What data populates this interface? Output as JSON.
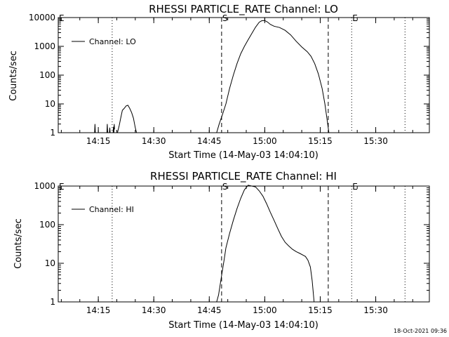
{
  "footer": {
    "timestamp": "18-Oct-2021 09:36"
  },
  "chart_data": [
    {
      "type": "line",
      "title": "RHESSI PARTICLE_RATE Channel: LO",
      "xlabel": "Start Time (14-May-03 14:04:10)",
      "ylabel": "Counts/sec",
      "yscale": "log",
      "ylim": [
        1,
        10000
      ],
      "xlim": [
        "14:04:10",
        "15:44:30"
      ],
      "xticks": [
        "14:15",
        "14:30",
        "14:45",
        "15:00",
        "15:15",
        "15:30"
      ],
      "yticks": [
        "1",
        "10",
        "100",
        "1000",
        "10000"
      ],
      "legend": {
        "label": "Channel: LO",
        "position": "top-left"
      },
      "markers": [
        {
          "label": "E",
          "time": "14:04:10",
          "style": "none"
        },
        {
          "label": "",
          "time": "14:18:45",
          "style": "dotted"
        },
        {
          "label": "S",
          "time": "14:48:20",
          "style": "dashed"
        },
        {
          "label": "",
          "time": "15:17:10",
          "style": "dashed"
        },
        {
          "label": "E",
          "time": "15:23:30",
          "style": "dotted"
        },
        {
          "label": "",
          "time": "15:37:55",
          "style": "dotted"
        }
      ],
      "series": [
        {
          "name": "Channel: LO",
          "segments": [
            [
              [
                "14:14:00",
                1
              ],
              [
                "14:14:06",
                2
              ],
              [
                "14:14:12",
                1
              ]
            ],
            [
              [
                "14:17:20",
                1
              ],
              [
                "14:17:26",
                2
              ],
              [
                "14:17:32",
                1
              ]
            ],
            [
              [
                "14:18:00",
                1
              ],
              [
                "14:18:06",
                1.5
              ],
              [
                "14:18:12",
                1
              ]
            ],
            [
              [
                "14:19:00",
                1
              ],
              [
                "14:19:06",
                1.6
              ],
              [
                "14:19:12",
                1
              ],
              [
                "14:19:18",
                2
              ],
              [
                "14:19:24",
                1.3
              ]
            ],
            [
              [
                "14:20:10",
                1
              ],
              [
                "14:20:40",
                1.8
              ],
              [
                "14:21:00",
                3
              ],
              [
                "14:21:30",
                6
              ],
              [
                "14:22:00",
                7
              ],
              [
                "14:22:30",
                8.5
              ],
              [
                "14:23:00",
                9
              ],
              [
                "14:23:30",
                7
              ],
              [
                "14:24:00",
                5
              ],
              [
                "14:24:30",
                3.2
              ],
              [
                "14:25:00",
                1.5
              ],
              [
                "14:25:20",
                1
              ]
            ],
            [
              [
                "14:47:00",
                1
              ],
              [
                "14:47:40",
                2
              ],
              [
                "14:48:30",
                4
              ],
              [
                "14:49:30",
                10
              ],
              [
                "14:50:30",
                35
              ],
              [
                "14:51:30",
                100
              ],
              [
                "14:52:30",
                250
              ],
              [
                "14:53:30",
                550
              ],
              [
                "14:54:30",
                1000
              ],
              [
                "14:55:30",
                1700
              ],
              [
                "14:56:30",
                2800
              ],
              [
                "14:57:30",
                4600
              ],
              [
                "14:58:30",
                6900
              ],
              [
                "14:59:15",
                7800
              ],
              [
                "15:00:00",
                7900
              ],
              [
                "15:00:45",
                7000
              ],
              [
                "15:01:30",
                5800
              ],
              [
                "15:02:30",
                5000
              ],
              [
                "15:04:00",
                4500
              ],
              [
                "15:05:30",
                3600
              ],
              [
                "15:07:00",
                2500
              ],
              [
                "15:08:30",
                1500
              ],
              [
                "15:10:00",
                950
              ],
              [
                "15:11:30",
                650
              ],
              [
                "15:12:30",
                450
              ],
              [
                "15:13:30",
                250
              ],
              [
                "15:14:30",
                110
              ],
              [
                "15:15:30",
                35
              ],
              [
                "15:16:15",
                10
              ],
              [
                "15:16:50",
                3
              ],
              [
                "15:17:20",
                1
              ]
            ]
          ]
        }
      ]
    },
    {
      "type": "line",
      "title": "RHESSI PARTICLE_RATE Channel: HI",
      "xlabel": "Start Time (14-May-03 14:04:10)",
      "ylabel": "Counts/sec",
      "yscale": "log",
      "ylim": [
        1,
        1000
      ],
      "xlim": [
        "14:04:10",
        "15:44:30"
      ],
      "xticks": [
        "14:15",
        "14:30",
        "14:45",
        "15:00",
        "15:15",
        "15:30"
      ],
      "yticks": [
        "1",
        "10",
        "100",
        "1000"
      ],
      "legend": {
        "label": "Channel: HI",
        "position": "top-left"
      },
      "markers": [
        {
          "label": "E",
          "time": "14:04:10",
          "style": "none"
        },
        {
          "label": "",
          "time": "14:18:45",
          "style": "dotted"
        },
        {
          "label": "S",
          "time": "14:48:20",
          "style": "dashed"
        },
        {
          "label": "",
          "time": "15:17:10",
          "style": "dashed"
        },
        {
          "label": "E",
          "time": "15:23:30",
          "style": "dotted"
        },
        {
          "label": "",
          "time": "15:37:55",
          "style": "dotted"
        }
      ],
      "series": [
        {
          "name": "Channel: HI",
          "segments": [
            [
              [
                "14:47:00",
                1
              ],
              [
                "14:47:30",
                1.5
              ],
              [
                "14:48:00",
                3
              ],
              [
                "14:48:30",
                6
              ],
              [
                "14:49:00",
                12
              ],
              [
                "14:49:30",
                25
              ],
              [
                "14:50:30",
                60
              ],
              [
                "14:51:30",
                130
              ],
              [
                "14:52:30",
                260
              ],
              [
                "14:53:30",
                480
              ],
              [
                "14:54:30",
                800
              ],
              [
                "14:55:30",
                1050
              ],
              [
                "14:56:30",
                1000
              ],
              [
                "14:57:30",
                950
              ],
              [
                "14:58:30",
                750
              ],
              [
                "14:59:30",
                550
              ],
              [
                "15:00:30",
                350
              ],
              [
                "15:01:30",
                210
              ],
              [
                "15:02:30",
                130
              ],
              [
                "15:03:30",
                80
              ],
              [
                "15:04:30",
                50
              ],
              [
                "15:05:30",
                35
              ],
              [
                "15:06:30",
                28
              ],
              [
                "15:07:30",
                23
              ],
              [
                "15:08:30",
                20
              ],
              [
                "15:09:30",
                18
              ],
              [
                "15:10:30",
                16
              ],
              [
                "15:11:00",
                15
              ],
              [
                "15:11:40",
                12
              ],
              [
                "15:12:20",
                8
              ],
              [
                "15:12:50",
                3.5
              ],
              [
                "15:13:20",
                1
              ]
            ]
          ]
        }
      ]
    }
  ]
}
